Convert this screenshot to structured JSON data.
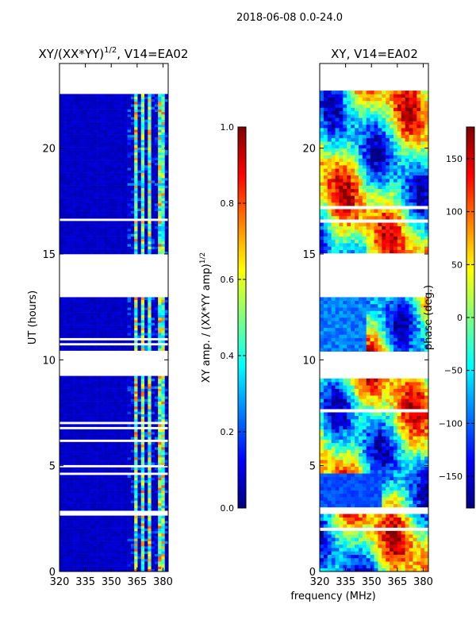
{
  "figure": {
    "suptitle": "2018-06-08 0.0-24.0",
    "xlabel": "frequency (MHz)"
  },
  "chart_data": [
    {
      "type": "heatmap",
      "id": "amp",
      "title": "XY/(XX*YY)",
      "title_sup": "1/2",
      "title_tail": ", V14=EA02",
      "xlabel": "",
      "ylabel": "UT (hours)",
      "xlim": [
        320,
        383
      ],
      "ylim": [
        0,
        24
      ],
      "xticks": [
        320,
        335,
        350,
        365,
        380
      ],
      "yticks": [
        0,
        5,
        10,
        15,
        20
      ],
      "colorbar": {
        "label": "XY amp. / (XX*YY amp)",
        "label_sup": "1/2",
        "range": [
          0.0,
          1.0
        ],
        "ticks": [
          "0.0",
          "0.2",
          "0.4",
          "0.6",
          "0.8",
          "1.0"
        ],
        "tick_values": [
          0.0,
          0.2,
          0.4,
          0.6,
          0.8,
          1.0
        ],
        "colormap": "jet"
      },
      "data_bands_ut": [
        [
          0.0,
          2.7
        ],
        [
          2.9,
          4.6
        ],
        [
          4.7,
          9.2
        ],
        [
          10.4,
          13.0
        ],
        [
          13.4,
          13.5
        ],
        [
          15.0,
          22.8
        ]
      ],
      "bright_channels_mhz": [
        [
          363,
          366
        ],
        [
          367,
          369
        ],
        [
          372,
          374
        ],
        [
          377,
          381
        ]
      ],
      "background_value": 0.05,
      "bright_value_range": [
        0.3,
        0.8
      ]
    },
    {
      "type": "heatmap",
      "id": "phase",
      "title": "XY, V14=EA02",
      "xlabel": "",
      "ylabel": "",
      "xlim": [
        320,
        383
      ],
      "ylim": [
        0,
        24
      ],
      "xticks": [
        320,
        335,
        350,
        365,
        380
      ],
      "yticks": [
        0,
        5,
        10,
        15,
        20
      ],
      "colorbar": {
        "label": "phase (deg.)",
        "range": [
          -180,
          180
        ],
        "ticks": [
          "−150",
          "−100",
          "−50",
          "0",
          "50",
          "100",
          "150"
        ],
        "tick_values": [
          -150,
          -100,
          -50,
          0,
          50,
          100,
          150
        ],
        "colormap": "jet"
      },
      "data_bands_ut": [
        [
          0.0,
          2.7
        ],
        [
          2.9,
          4.6
        ],
        [
          4.7,
          9.2
        ],
        [
          10.4,
          13.0
        ],
        [
          13.4,
          13.5
        ],
        [
          15.0,
          22.8
        ]
      ]
    }
  ]
}
